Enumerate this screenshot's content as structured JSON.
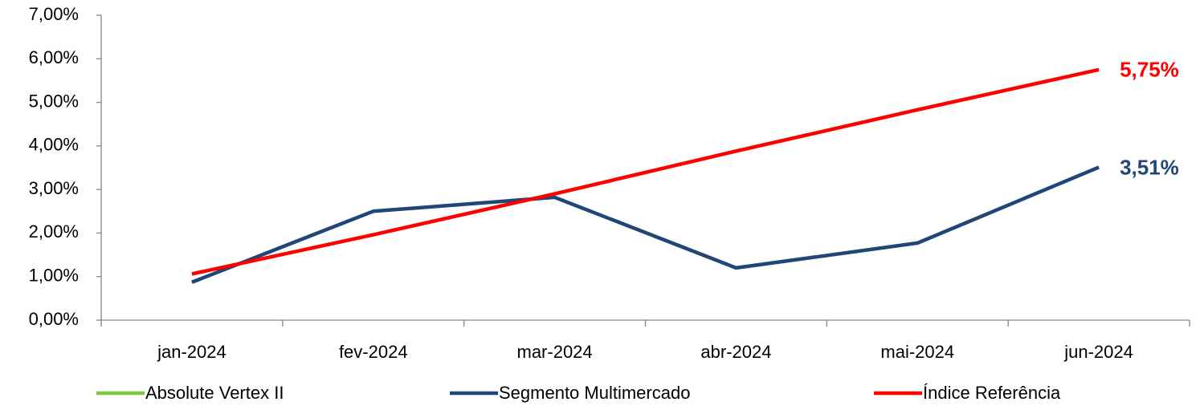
{
  "chart_data": {
    "type": "line",
    "categories": [
      "jan-2024",
      "fev-2024",
      "mar-2024",
      "abr-2024",
      "mai-2024",
      "jun-2024"
    ],
    "series": [
      {
        "name": "Absolute Vertex II",
        "color": "#7ec845",
        "values": [
          null,
          null,
          null,
          null,
          null,
          null
        ]
      },
      {
        "name": "Segmento Multimercado",
        "color": "#1f4676",
        "values": [
          0.87,
          2.5,
          2.82,
          1.2,
          1.77,
          3.51
        ],
        "value_labels": [
          null,
          null,
          null,
          null,
          null,
          "3,51%"
        ]
      },
      {
        "name": "Índice Referência",
        "color": "#ff0000",
        "values": [
          1.06,
          1.96,
          2.9,
          3.88,
          4.83,
          5.75
        ],
        "value_labels": [
          null,
          null,
          null,
          null,
          null,
          "5,75%"
        ]
      }
    ],
    "ylim": [
      0,
      7
    ],
    "yticks": [
      {
        "value": 0,
        "label": "0,00%"
      },
      {
        "value": 1,
        "label": "1,00%"
      },
      {
        "value": 2,
        "label": "2,00%"
      },
      {
        "value": 3,
        "label": "3,00%"
      },
      {
        "value": 4,
        "label": "4,00%"
      },
      {
        "value": 5,
        "label": "5,00%"
      },
      {
        "value": 6,
        "label": "6,00%"
      },
      {
        "value": 7,
        "label": "7,00%"
      }
    ],
    "grid": false,
    "legend": "bottom"
  }
}
